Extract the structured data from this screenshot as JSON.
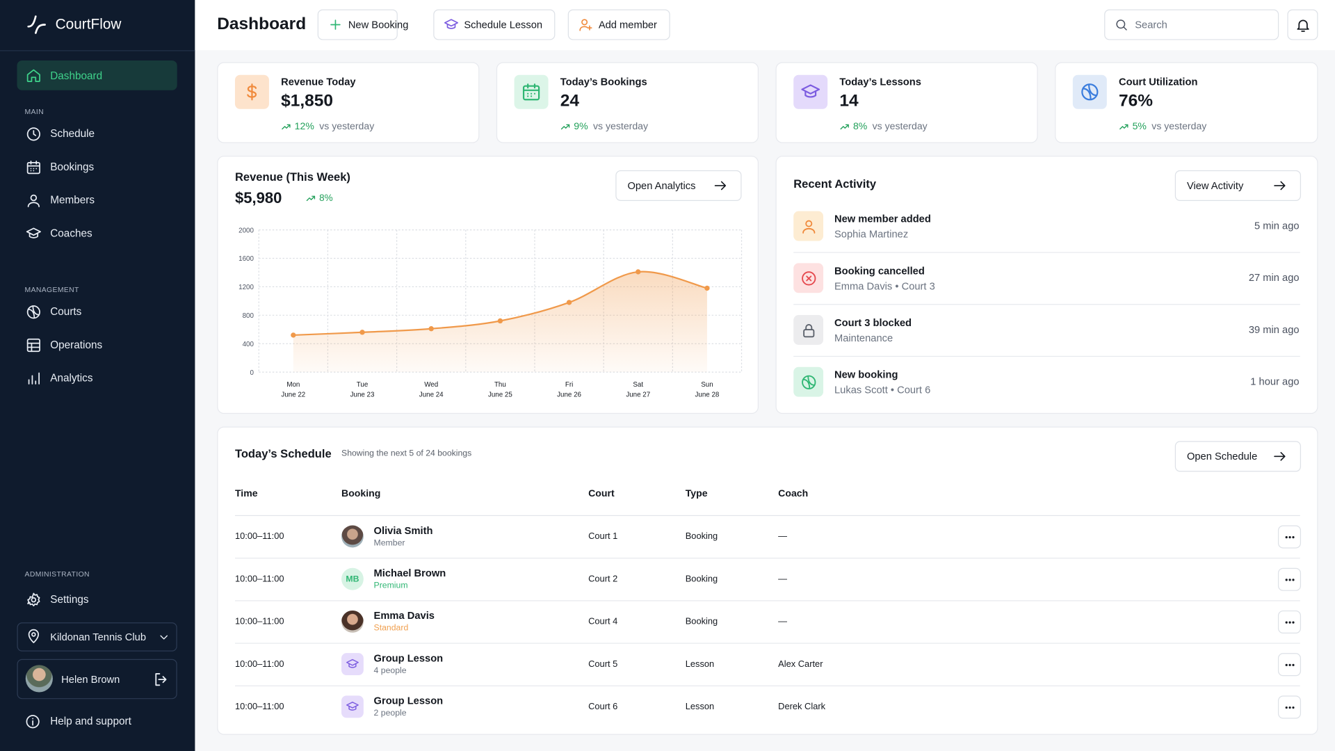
{
  "sidebar": {
    "brand": "CourtFlow",
    "active": "Dashboard",
    "sections": [
      {
        "label": "MAIN",
        "items": [
          "Schedule",
          "Bookings",
          "Members",
          "Coaches"
        ]
      },
      {
        "label": "MANAGEMENT",
        "items": [
          "Courts",
          "Operations",
          "Analytics"
        ]
      },
      {
        "label": "ADMINISTRATION",
        "items": [
          "Settings"
        ]
      }
    ],
    "club": "Kildonan Tennis Club",
    "user": "Helen Brown",
    "help": "Help and support"
  },
  "header": {
    "title": "Dashboard",
    "actions": [
      "New Booking",
      "Schedule Lesson",
      "Add member"
    ],
    "search": "Search"
  },
  "stats": [
    {
      "label": "Revenue Today",
      "value": "$1,850",
      "change": "12%",
      "compare": "vs yesterday"
    },
    {
      "label": "Today’s Bookings",
      "value": "24",
      "change": "9%",
      "compare": "vs yesterday"
    },
    {
      "label": "Today’s Lessons",
      "value": "14",
      "change": "8%",
      "compare": "vs yesterday"
    },
    {
      "label": "Court Utilization",
      "value": "76%",
      "change": "5%",
      "compare": "vs yesterday"
    }
  ],
  "revenue": {
    "title": "Revenue (This Week)",
    "total": "$5,980",
    "change": "8%",
    "action": "Open Analytics",
    "chart": {
      "type": "line",
      "categories": [
        "Mon",
        "Tue",
        "Wed",
        "Thu",
        "Fri",
        "Sat",
        "Sun"
      ],
      "dates": [
        "June 22",
        "June 23",
        "June 24",
        "June 25",
        "June 26",
        "June 27",
        "June 28"
      ],
      "values": [
        520,
        560,
        610,
        720,
        980,
        1410,
        1180
      ],
      "color": "#f0994a",
      "ylim": [
        0,
        2000
      ],
      "yticks": [
        0,
        400,
        800,
        1200,
        1600,
        2000
      ],
      "grid": true
    }
  },
  "activity": {
    "title": "Recent Activity",
    "action": "View Activity",
    "items": [
      {
        "title": "New member added",
        "detail": "Sophia Martinez",
        "time": "5 min ago"
      },
      {
        "title": "Booking cancelled",
        "detail": "Emma Davis • Court 3",
        "time": "27 min ago"
      },
      {
        "title": "Court 3 blocked",
        "detail": "Maintenance",
        "time": "39 min ago"
      },
      {
        "title": "New booking",
        "detail": "Lukas Scott • Court 6",
        "time": "1 hour ago"
      }
    ]
  },
  "schedule": {
    "title": "Today’s Schedule",
    "subtitle": "Showing the next 5 of 24 bookings",
    "action": "Open Schedule",
    "columns": [
      "Time",
      "Booking",
      "Court",
      "Type",
      "Coach"
    ],
    "rows": [
      {
        "time": "10:00–11:00",
        "name": "Olivia Smith",
        "note": "Member",
        "court": "Court 1",
        "type": "Booking",
        "coach": "—"
      },
      {
        "time": "10:00–11:00",
        "initials": "MB",
        "name": "Michael Brown",
        "note": "Premium",
        "court": "Court 2",
        "type": "Booking",
        "coach": "—"
      },
      {
        "time": "10:00–11:00",
        "name": "Emma Davis",
        "note": "Standard",
        "court": "Court 4",
        "type": "Booking",
        "coach": "—"
      },
      {
        "time": "10:00–11:00",
        "name": "Group Lesson",
        "note": "4 people",
        "court": "Court 5",
        "type": "Lesson",
        "coach": "Alex Carter"
      },
      {
        "time": "10:00–11:00",
        "name": "Group Lesson",
        "note": "2 people",
        "court": "Court 6",
        "type": "Lesson",
        "coach": "Derek Clark"
      }
    ]
  }
}
